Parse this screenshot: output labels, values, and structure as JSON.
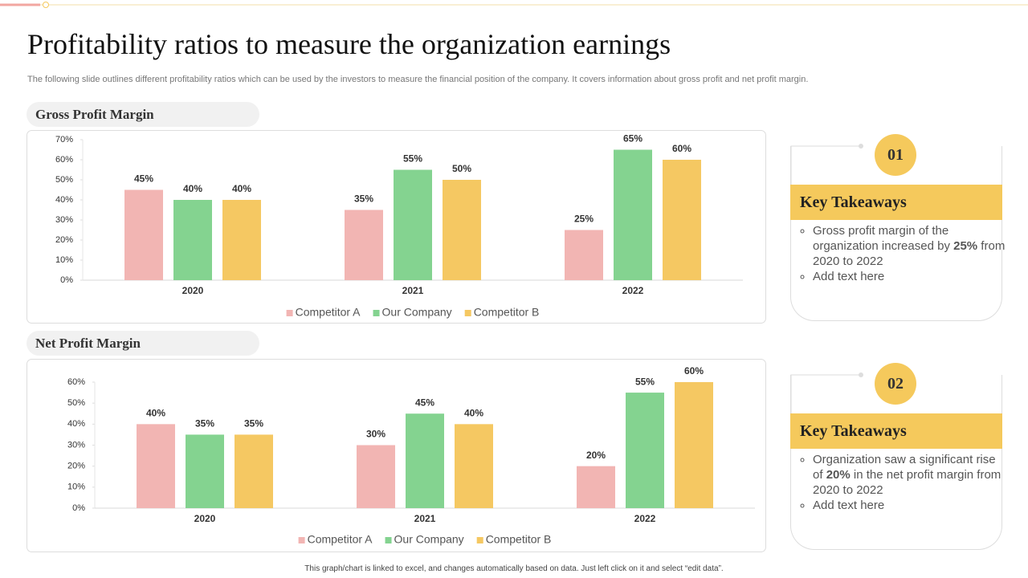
{
  "header": {
    "title": "Profitability ratios to measure the organization earnings",
    "subtitle": "The following slide outlines different profitability ratios which can be used by the investors to measure the financial position of the company. It covers information about gross profit and net profit margin."
  },
  "chart_data": [
    {
      "type": "bar",
      "title": "Gross Profit Margin",
      "categories": [
        "2020",
        "2021",
        "2022"
      ],
      "series": [
        {
          "name": "Competitor A",
          "color": "#f2b5b3",
          "values": [
            45,
            35,
            25
          ],
          "value_labels": [
            "45%",
            "35%",
            "25%"
          ]
        },
        {
          "name": "Our Company",
          "color": "#84d390",
          "values": [
            40,
            55,
            65
          ],
          "value_labels": [
            "40%",
            "55%",
            "65%"
          ]
        },
        {
          "name": "Competitor B",
          "color": "#f5c862",
          "values": [
            40,
            50,
            60
          ],
          "value_labels": [
            "40%",
            "50%",
            "60%"
          ]
        }
      ],
      "ylim": [
        0,
        70
      ],
      "yticks": [
        {
          "value": 0,
          "label": "0%"
        },
        {
          "value": 10,
          "label": "10%"
        },
        {
          "value": 20,
          "label": "20%"
        },
        {
          "value": 30,
          "label": "30%"
        },
        {
          "value": 40,
          "label": "40%"
        },
        {
          "value": 50,
          "label": "50%"
        },
        {
          "value": 60,
          "label": "60%"
        },
        {
          "value": 70,
          "label": "70%"
        }
      ],
      "legend": "bottom"
    },
    {
      "type": "bar",
      "title": "Net Profit Margin",
      "categories": [
        "2020",
        "2021",
        "2022"
      ],
      "series": [
        {
          "name": "Competitor A",
          "color": "#f2b5b3",
          "values": [
            40,
            30,
            20
          ],
          "value_labels": [
            "40%",
            "30%",
            "20%"
          ]
        },
        {
          "name": "Our Company",
          "color": "#84d390",
          "values": [
            35,
            45,
            55
          ],
          "value_labels": [
            "35%",
            "45%",
            "55%"
          ]
        },
        {
          "name": "Competitor B",
          "color": "#f5c862",
          "values": [
            35,
            40,
            60
          ],
          "value_labels": [
            "35%",
            "40%",
            "60%"
          ]
        }
      ],
      "ylim": [
        0,
        60
      ],
      "yticks": [
        {
          "value": 0,
          "label": "0%"
        },
        {
          "value": 10,
          "label": "10%"
        },
        {
          "value": 20,
          "label": "20%"
        },
        {
          "value": 30,
          "label": "30%"
        },
        {
          "value": 40,
          "label": "40%"
        },
        {
          "value": 50,
          "label": "50%"
        },
        {
          "value": 60,
          "label": "60%"
        }
      ],
      "legend": "bottom"
    }
  ],
  "takeaways": [
    {
      "number": "01",
      "title": "Key Takeaways",
      "bullets": [
        [
          "Gross profit margin of the organization increased by ",
          "25%",
          " from 2020 to 2022"
        ],
        [
          "Add text here"
        ]
      ]
    },
    {
      "number": "02",
      "title": "Key Takeaways",
      "bullets": [
        [
          "Organization saw a significant rise of ",
          "20%",
          " in the net profit margin from 2020 to 2022"
        ],
        [
          "Add text here"
        ]
      ]
    }
  ],
  "footer": "This graph/chart is linked to excel, and changes automatically based on data. Just left click on it and select “edit data”."
}
